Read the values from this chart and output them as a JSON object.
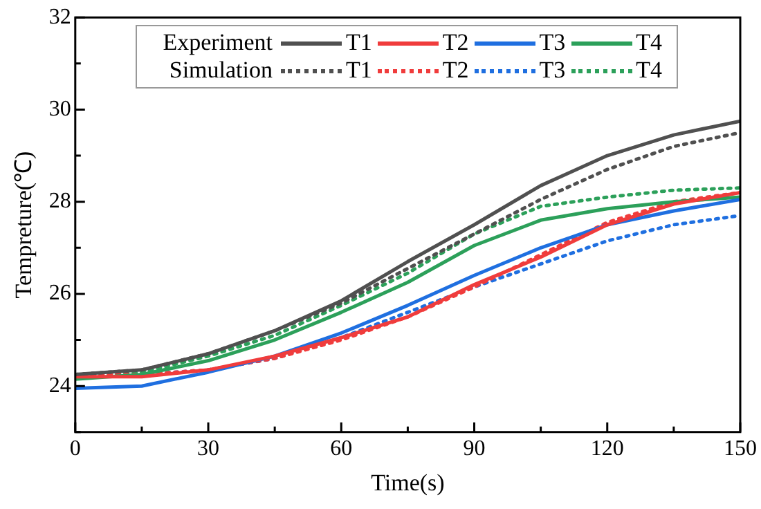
{
  "chart_data": {
    "type": "line",
    "xlabel": "Time(s)",
    "ylabel": "Tempreture(℃)",
    "x": [
      0,
      15,
      30,
      45,
      60,
      75,
      90,
      105,
      120,
      135,
      150
    ],
    "xlim": [
      0,
      150
    ],
    "xticks": [
      0,
      {
        "value": 15,
        "label": null
      },
      30,
      {
        "value": 45,
        "label": null
      },
      60,
      {
        "value": 75,
        "label": null
      },
      90,
      {
        "value": 105,
        "label": null
      },
      120,
      {
        "value": 135,
        "label": null
      },
      150
    ],
    "ylim": [
      23,
      32
    ],
    "yticks": [
      {
        "value": 23,
        "label": null
      },
      24,
      {
        "value": 25,
        "label": null
      },
      26,
      {
        "value": 27,
        "label": null
      },
      28,
      {
        "value": 29,
        "label": null
      },
      30,
      {
        "value": 31,
        "label": null
      },
      32
    ],
    "grid": false,
    "legend": "top",
    "marker": "none",
    "annotations": [
      "Experiment",
      "Simulation"
    ],
    "series": [
      {
        "name": "T1",
        "color": "#505050",
        "line_style": "solid",
        "values": [
          24.25,
          24.35,
          24.7,
          25.2,
          25.85,
          26.7,
          27.5,
          28.35,
          29.0,
          29.45,
          29.75
        ]
      },
      {
        "name": "T2",
        "color": "#f03c3c",
        "line_style": "solid",
        "values": [
          24.2,
          24.2,
          24.35,
          24.65,
          25.05,
          25.5,
          26.2,
          26.8,
          27.5,
          27.95,
          28.2
        ]
      },
      {
        "name": "T3",
        "color": "#1f6fe0",
        "line_style": "solid",
        "values": [
          23.95,
          24.0,
          24.3,
          24.65,
          25.15,
          25.75,
          26.4,
          27.0,
          27.5,
          27.8,
          28.05
        ]
      },
      {
        "name": "T4",
        "color": "#2ca05a",
        "line_style": "solid",
        "values": [
          24.15,
          24.25,
          24.55,
          25.0,
          25.6,
          26.25,
          27.05,
          27.6,
          27.85,
          28.0,
          28.1
        ]
      },
      {
        "name": "T1",
        "color": "#505050",
        "line_style": "dotted",
        "values": [
          24.25,
          24.35,
          24.7,
          25.2,
          25.8,
          26.55,
          27.3,
          28.05,
          28.7,
          29.2,
          29.5
        ]
      },
      {
        "name": "T2",
        "color": "#f03c3c",
        "line_style": "dotted",
        "values": [
          24.25,
          24.25,
          24.35,
          24.6,
          25.0,
          25.5,
          26.15,
          26.85,
          27.55,
          28.0,
          28.2
        ]
      },
      {
        "name": "T3",
        "color": "#1f6fe0",
        "line_style": "dotted",
        "values": [
          24.2,
          24.25,
          24.35,
          24.6,
          25.05,
          25.6,
          26.15,
          26.65,
          27.15,
          27.5,
          27.7
        ]
      },
      {
        "name": "T4",
        "color": "#2ca05a",
        "line_style": "dotted",
        "values": [
          24.2,
          24.3,
          24.65,
          25.1,
          25.75,
          26.45,
          27.3,
          27.9,
          28.1,
          28.25,
          28.3
        ]
      }
    ]
  }
}
